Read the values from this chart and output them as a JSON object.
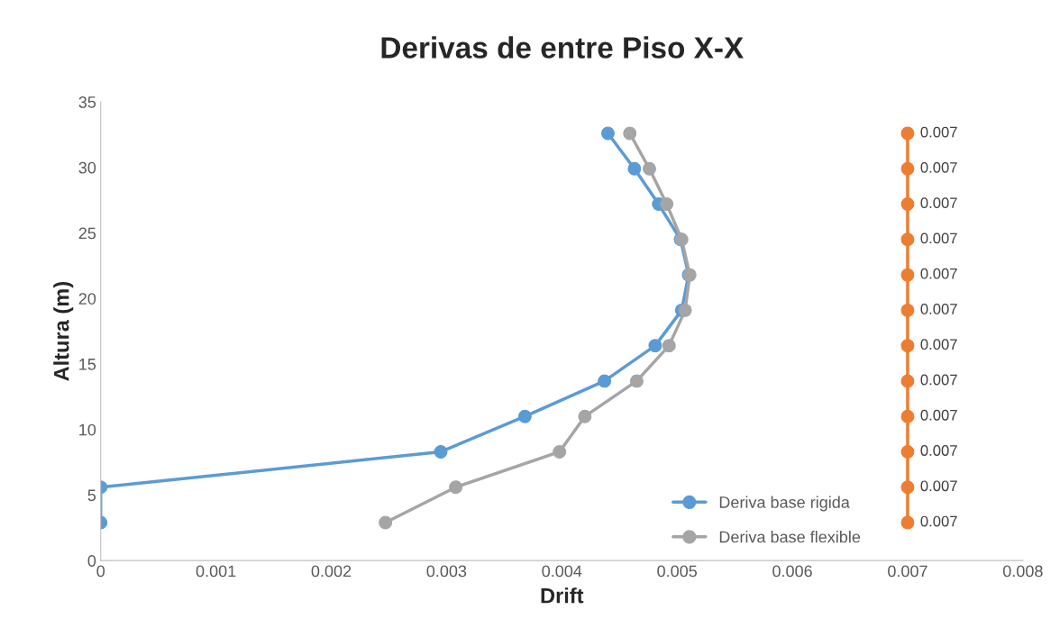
{
  "chart_data": {
    "type": "line",
    "title": "Derivas de entre Piso X-X",
    "xlabel": "Drift",
    "ylabel": "Altura (m)",
    "xlim": [
      0,
      0.008
    ],
    "xticks": [
      0,
      0.001,
      0.002,
      0.003,
      0.004,
      0.005,
      0.006,
      0.007,
      0.008
    ],
    "ylim": [
      0,
      35
    ],
    "yticks": [
      0,
      5,
      10,
      15,
      20,
      25,
      30,
      35
    ],
    "grid": false,
    "legend": "bottom right",
    "marker": "circle",
    "line_style": "solid",
    "series": [
      {
        "name": "Deriva base rigida",
        "color": "#5b9bd5",
        "x": [
          0,
          0,
          0.00295,
          0.00368,
          0.00437,
          0.00481,
          0.00504,
          0.0051,
          0.00503,
          0.00484,
          0.00463,
          0.0044
        ],
        "values": [
          2.9,
          5.6,
          8.3,
          11.0,
          13.7,
          16.4,
          19.1,
          21.8,
          24.5,
          27.2,
          29.9,
          32.6
        ]
      },
      {
        "name": "Deriva base flexible",
        "color": "#a5a5a5",
        "x": [
          0.00247,
          0.00308,
          0.00398,
          0.0042,
          0.00465,
          0.00493,
          0.00507,
          0.00511,
          0.00504,
          0.00491,
          0.00476,
          0.00459
        ],
        "values": [
          2.9,
          5.6,
          8.3,
          11.0,
          13.7,
          16.4,
          19.1,
          21.8,
          24.5,
          27.2,
          29.9,
          32.6
        ]
      },
      {
        "color": "#ed7d31",
        "x": [
          0.007,
          0.007,
          0.007,
          0.007,
          0.007,
          0.007,
          0.007,
          0.007,
          0.007,
          0.007,
          0.007,
          0.007
        ],
        "values": [
          2.9,
          5.6,
          8.3,
          11.0,
          13.7,
          16.4,
          19.1,
          21.8,
          24.5,
          27.2,
          29.9,
          32.6
        ]
      }
    ],
    "annotations": [
      "0.007",
      "0.007",
      "0.007",
      "0.007",
      "0.007",
      "0.007",
      "0.007",
      "0.007",
      "0.007",
      "0.007",
      "0.007",
      "0.007"
    ]
  }
}
